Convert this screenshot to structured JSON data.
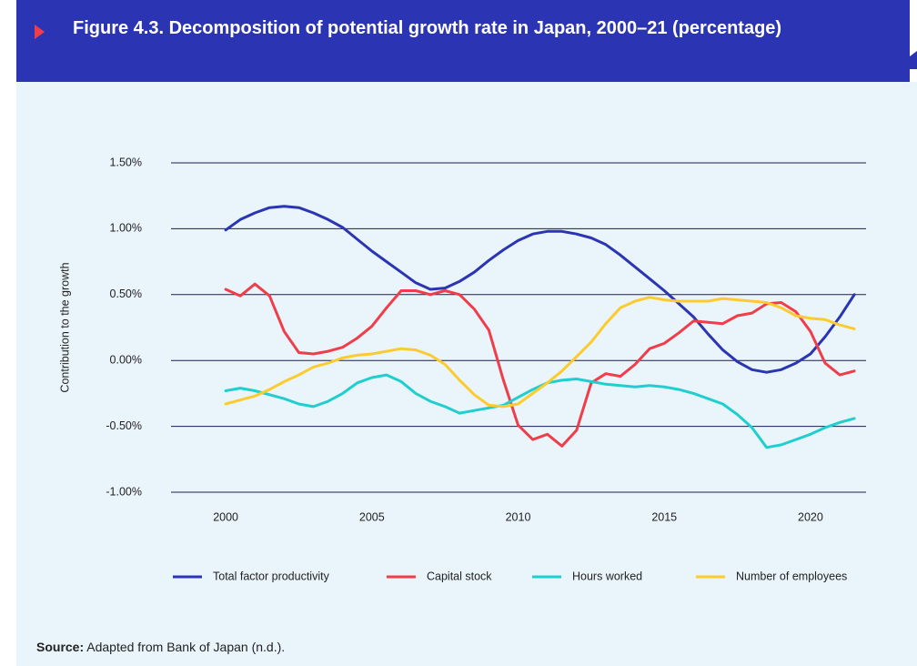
{
  "chart_data": {
    "type": "line",
    "title": "Figure 4.3. Decomposition of potential growth rate in Japan, 2000–21 (percentage)",
    "y_label": "Contribution to the growth",
    "source_label": "Source:",
    "source_text": "Adapted from Bank of Japan (n.d.).",
    "x": [
      2000,
      2000.5,
      2001,
      2001.5,
      2002,
      2002.5,
      2003,
      2003.5,
      2004,
      2004.5,
      2005,
      2005.5,
      2006,
      2006.5,
      2007,
      2007.5,
      2008,
      2008.5,
      2009,
      2009.5,
      2010,
      2010.5,
      2011,
      2011.5,
      2012,
      2012.5,
      2013,
      2013.5,
      2014,
      2014.5,
      2015,
      2015.5,
      2016,
      2016.5,
      2017,
      2017.5,
      2018,
      2018.5,
      2019,
      2019.5,
      2020,
      2020.5,
      2021,
      2021.5
    ],
    "xlim": [
      1998.13,
      2021.9
    ],
    "xticks": [
      2000,
      2005,
      2010,
      2015,
      2020
    ],
    "ylim": [
      -1,
      1.5
    ],
    "yticks": [
      {
        "value": -1,
        "label": "-1.00%"
      },
      {
        "value": -0.5,
        "label": "-0.50%"
      },
      {
        "value": 0,
        "label": "0.00%"
      },
      {
        "value": 0.5,
        "label": "0.50%"
      },
      {
        "value": 1,
        "label": "1.00%"
      },
      {
        "value": 1.5,
        "label": "1.50%"
      }
    ],
    "grid": true,
    "legend": "bottom",
    "series": [
      {
        "name": "Total factor productivity",
        "color": "#2b35b3",
        "values": [
          0.99,
          1.07,
          1.12,
          1.16,
          1.17,
          1.16,
          1.12,
          1.07,
          1.01,
          0.92,
          0.83,
          0.75,
          0.67,
          0.59,
          0.54,
          0.55,
          0.6,
          0.67,
          0.76,
          0.84,
          0.91,
          0.96,
          0.98,
          0.98,
          0.96,
          0.93,
          0.88,
          0.8,
          0.71,
          0.62,
          0.53,
          0.43,
          0.33,
          0.2,
          0.08,
          -0.01,
          -0.07,
          -0.09,
          -0.07,
          -0.02,
          0.05,
          0.18,
          0.33,
          0.5
        ]
      },
      {
        "name": "Capital stock",
        "color": "#ef3e4a",
        "values": [
          0.54,
          0.49,
          0.58,
          0.49,
          0.22,
          0.06,
          0.05,
          0.07,
          0.1,
          0.17,
          0.26,
          0.4,
          0.53,
          0.53,
          0.5,
          0.53,
          0.5,
          0.39,
          0.23,
          -0.15,
          -0.49,
          -0.6,
          -0.56,
          -0.65,
          -0.53,
          -0.17,
          -0.1,
          -0.12,
          -0.03,
          0.09,
          0.13,
          0.21,
          0.3,
          0.29,
          0.28,
          0.34,
          0.36,
          0.43,
          0.44,
          0.37,
          0.22,
          -0.02,
          -0.11,
          -0.08
        ]
      },
      {
        "name": "Hours worked",
        "color": "#1fcfcf",
        "values": [
          -0.23,
          -0.21,
          -0.23,
          -0.26,
          -0.29,
          -0.33,
          -0.35,
          -0.31,
          -0.25,
          -0.17,
          -0.13,
          -0.11,
          -0.16,
          -0.25,
          -0.31,
          -0.35,
          -0.4,
          -0.38,
          -0.36,
          -0.34,
          -0.28,
          -0.22,
          -0.17,
          -0.15,
          -0.14,
          -0.16,
          -0.18,
          -0.19,
          -0.2,
          -0.19,
          -0.2,
          -0.22,
          -0.25,
          -0.29,
          -0.33,
          -0.41,
          -0.51,
          -0.66,
          -0.64,
          -0.6,
          -0.56,
          -0.51,
          -0.47,
          -0.44
        ]
      },
      {
        "name": "Number of employees",
        "color": "#fccb2e",
        "values": [
          -0.33,
          -0.3,
          -0.27,
          -0.22,
          -0.16,
          -0.11,
          -0.05,
          -0.02,
          0.02,
          0.04,
          0.05,
          0.07,
          0.09,
          0.08,
          0.04,
          -0.03,
          -0.15,
          -0.26,
          -0.34,
          -0.35,
          -0.33,
          -0.25,
          -0.17,
          -0.08,
          0.03,
          0.14,
          0.28,
          0.4,
          0.45,
          0.48,
          0.46,
          0.45,
          0.45,
          0.45,
          0.47,
          0.46,
          0.45,
          0.44,
          0.4,
          0.34,
          0.32,
          0.31,
          0.27,
          0.24
        ]
      }
    ]
  }
}
